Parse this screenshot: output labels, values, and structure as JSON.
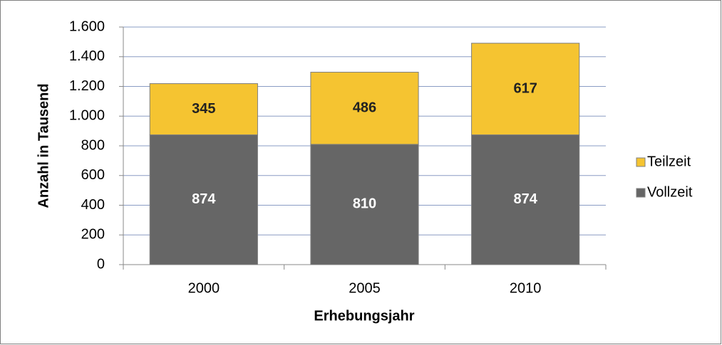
{
  "chart_data": {
    "type": "stacked-bar",
    "categories": [
      "2000",
      "2005",
      "2010"
    ],
    "series": [
      {
        "name": "Vollzeit",
        "color": "#666666",
        "values": [
          874,
          810,
          874
        ]
      },
      {
        "name": "Teilzeit",
        "color": "#f5c431",
        "values": [
          345,
          486,
          617
        ]
      }
    ],
    "xlabel": "Erhebungsjahr",
    "ylabel": "Anzahl in Tausend",
    "ylim": [
      0,
      1600
    ],
    "yticks": [
      0,
      200,
      400,
      600,
      800,
      {
        "value": 1000,
        "label": "1.000"
      },
      {
        "value": 1200,
        "label": "1.200"
      },
      {
        "value": 1400,
        "label": "1.400"
      },
      {
        "value": 1600,
        "label": "1.600"
      }
    ],
    "grid": true,
    "legend": "right"
  }
}
